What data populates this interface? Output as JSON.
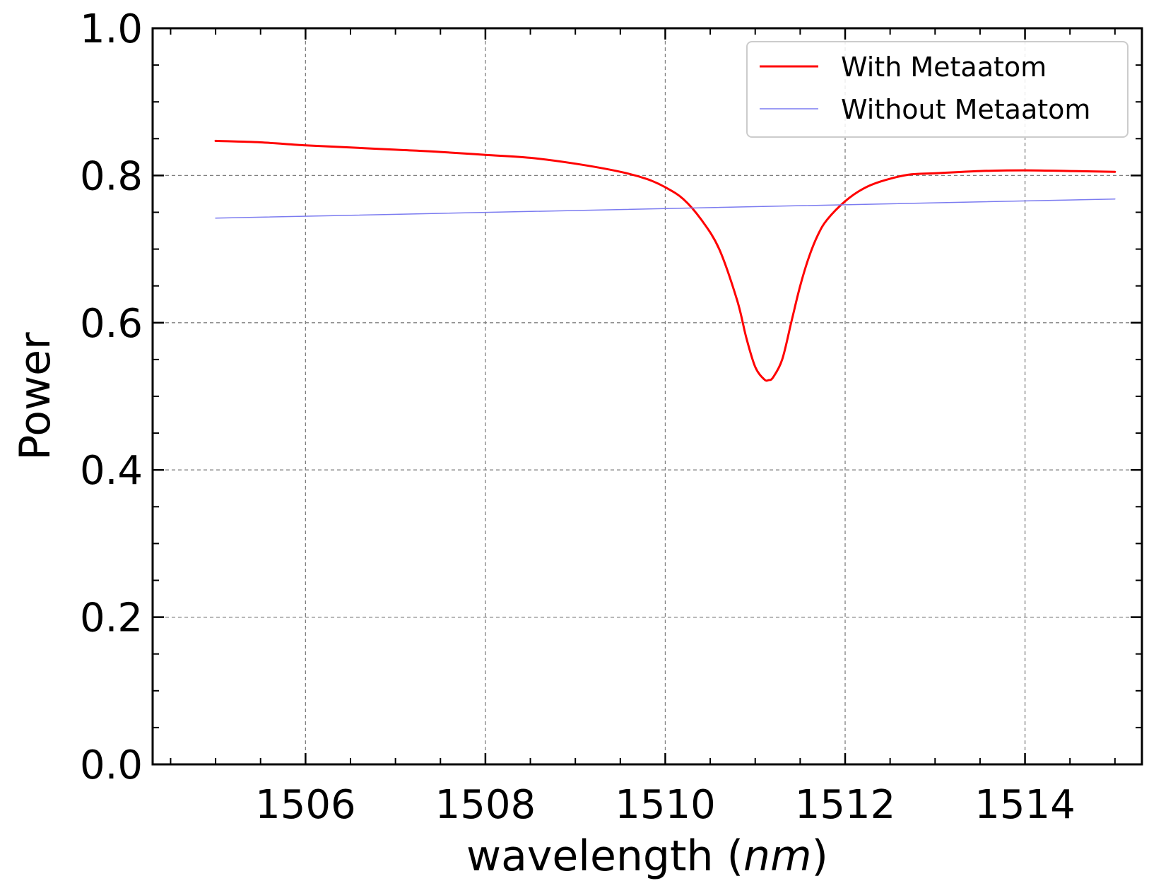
{
  "chart_data": {
    "type": "line",
    "title": "",
    "xlabel_prefix": "wavelength (",
    "xlabel_unit": "nm",
    "xlabel_suffix": ")",
    "ylabel": "Power",
    "xlim": [
      1504.3,
      1515.3
    ],
    "ylim": [
      0.0,
      1.0
    ],
    "xticks": [
      1506,
      1508,
      1510,
      1512,
      1514
    ],
    "xtick_labels": [
      "1506",
      "1508",
      "1510",
      "1512",
      "1514"
    ],
    "yticks": [
      0.0,
      0.2,
      0.4,
      0.6,
      0.8,
      1.0
    ],
    "ytick_labels": [
      "0.0",
      "0.2",
      "0.4",
      "0.6",
      "0.8",
      "1.0"
    ],
    "grid": true,
    "legend_position": "top-right",
    "series": [
      {
        "name": "With Metaatom",
        "color": "#ff0000",
        "x": [
          1505.0,
          1505.5,
          1506.0,
          1506.5,
          1507.0,
          1507.5,
          1508.0,
          1508.5,
          1509.0,
          1509.5,
          1509.8,
          1510.0,
          1510.2,
          1510.4,
          1510.6,
          1510.8,
          1510.9,
          1511.0,
          1511.1,
          1511.15,
          1511.2,
          1511.3,
          1511.4,
          1511.5,
          1511.6,
          1511.7,
          1511.8,
          1512.0,
          1512.2,
          1512.4,
          1512.7,
          1513.0,
          1513.5,
          1514.0,
          1514.5,
          1515.0
        ],
        "y": [
          0.847,
          0.845,
          0.841,
          0.838,
          0.835,
          0.832,
          0.828,
          0.824,
          0.816,
          0.805,
          0.795,
          0.784,
          0.768,
          0.74,
          0.7,
          0.63,
          0.58,
          0.54,
          0.523,
          0.522,
          0.526,
          0.55,
          0.6,
          0.65,
          0.69,
          0.72,
          0.74,
          0.765,
          0.782,
          0.792,
          0.801,
          0.803,
          0.806,
          0.807,
          0.806,
          0.805
        ]
      },
      {
        "name": "Without Metaatom",
        "color": "#7b7bf0",
        "x": [
          1505.0,
          1515.0
        ],
        "y": [
          0.742,
          0.768
        ]
      }
    ]
  }
}
